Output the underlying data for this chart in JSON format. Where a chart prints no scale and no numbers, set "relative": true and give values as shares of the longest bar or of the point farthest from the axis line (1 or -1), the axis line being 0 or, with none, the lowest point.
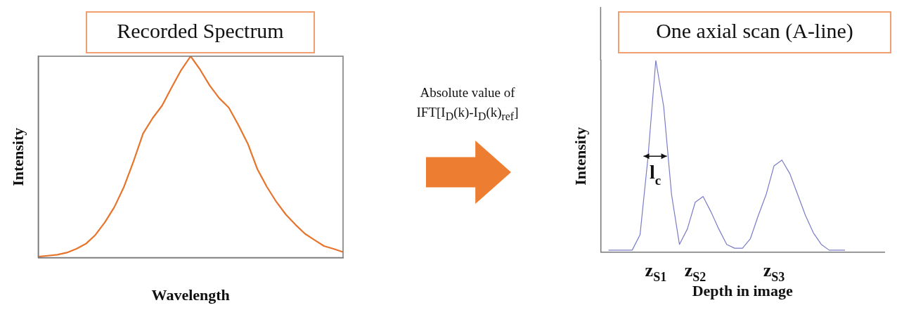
{
  "chart_data": [
    {
      "type": "line",
      "title": "Recorded Spectrum",
      "xlabel": "Wavelength",
      "ylabel": "Intensity",
      "relative": true,
      "categories": [
        null,
        null,
        null,
        null,
        null,
        null,
        null,
        null,
        null,
        null,
        null,
        null,
        null,
        null,
        null,
        null,
        null,
        null,
        null,
        null,
        null,
        null,
        null,
        null,
        null,
        null,
        null,
        null,
        null,
        null,
        null,
        null,
        null
      ],
      "series": [
        {
          "color": "#e8742c",
          "values": [
            0.005,
            0.01,
            0.015,
            0.025,
            0.044,
            0.069,
            0.113,
            0.176,
            0.252,
            0.352,
            0.478,
            0.616,
            0.692,
            0.755,
            0.845,
            0.931,
            1,
            0.933,
            0.855,
            0.792,
            0.745,
            0.66,
            0.566,
            0.44,
            0.352,
            0.277,
            0.214,
            0.164,
            0.119,
            0.088,
            0.058,
            0.044,
            0.028
          ]
        }
      ],
      "annotations": [
        "Absolute value of IFT[I$_{D}$(k)-I$_{D}$(k)$_{ref}$]"
      ]
    },
    {
      "type": "line",
      "title": "One axial scan (A-line)",
      "xlabel": "Depth in image",
      "ylabel": "Intensity",
      "relative": true,
      "categories": [
        null,
        null,
        null,
        null,
        null,
        null,
        null,
        "z$_{S1}$",
        null,
        null,
        null,
        null,
        "z$_{S2}$",
        null,
        null,
        null,
        null,
        null,
        null,
        null,
        null,
        null,
        "z$_{S3}$",
        null,
        null,
        null,
        null,
        null,
        null,
        null,
        null,
        null,
        null,
        null,
        null,
        null,
        null
      ],
      "series": [
        {
          "color": "#7b7bc8",
          "values": [
            null,
            0.01,
            0.01,
            0.01,
            0.01,
            0.09,
            0.49,
            1,
            0.76,
            0.3,
            0.04,
            0.12,
            0.26,
            0.29,
            0.21,
            0.12,
            0.04,
            0.02,
            0.02,
            0.07,
            0.19,
            0.3,
            0.45,
            0.48,
            0.41,
            0.3,
            0.19,
            0.1,
            0.04,
            0.01,
            0.01,
            0.01,
            null,
            null,
            null,
            null,
            null
          ]
        }
      ],
      "annotations": [
        "l$_{c}$"
      ]
    }
  ]
}
